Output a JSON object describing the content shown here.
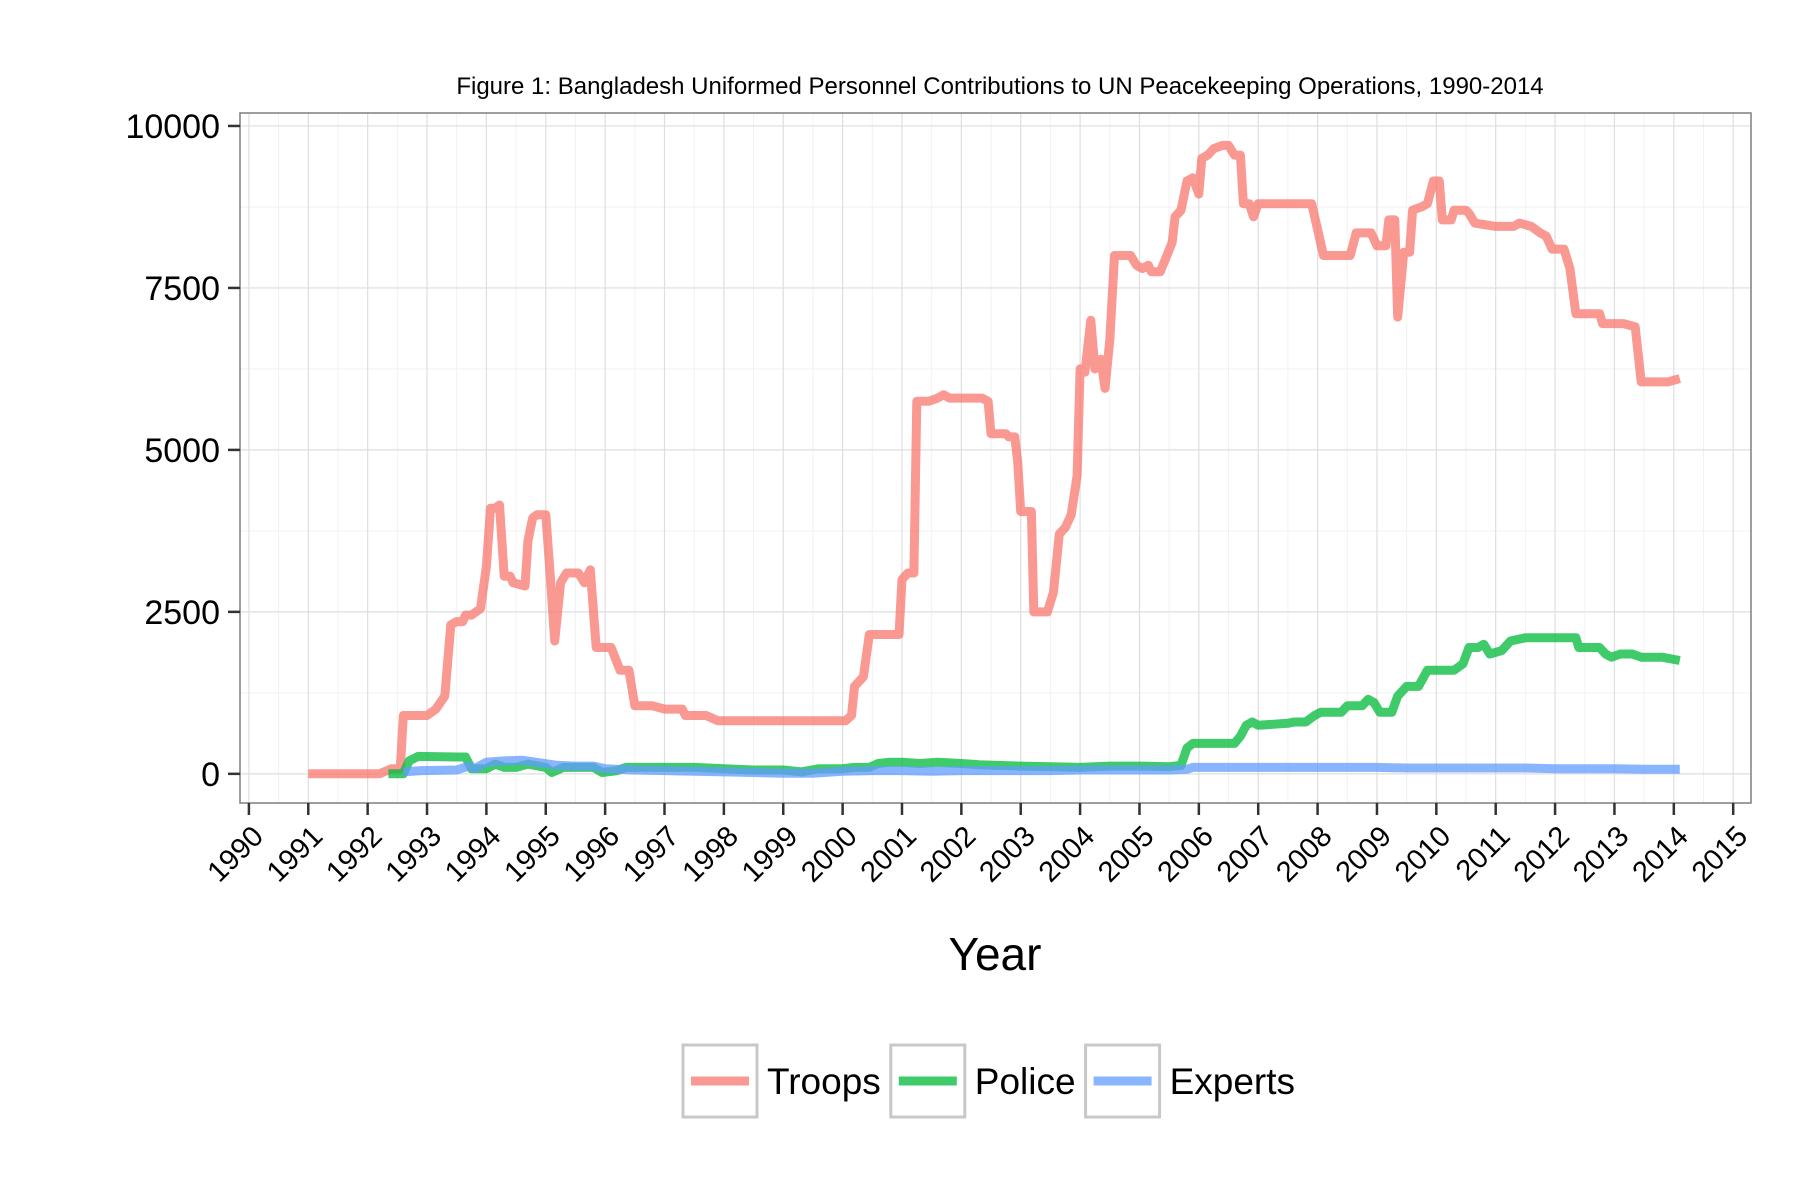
{
  "chart_data": {
    "type": "line",
    "title": "Figure 1: Bangladesh Uniformed Personnel Contributions to UN Peacekeeping Operations, 1990-2014",
    "xlabel": "Year",
    "ylabel": "",
    "xlim": [
      1989.85,
      2015.3
    ],
    "ylim": [
      -450,
      10200
    ],
    "x_ticks": [
      1990,
      1991,
      1992,
      1993,
      1994,
      1995,
      1996,
      1997,
      1998,
      1999,
      2000,
      2001,
      2002,
      2003,
      2004,
      2005,
      2006,
      2007,
      2008,
      2009,
      2010,
      2011,
      2012,
      2013,
      2014,
      2015
    ],
    "y_ticks": [
      0,
      2500,
      5000,
      7500,
      10000
    ],
    "grid": true,
    "legend_position": "bottom",
    "series": [
      {
        "name": "Troops",
        "color": "#F8766D",
        "points": [
          [
            1991.0,
            0
          ],
          [
            1992.2,
            0
          ],
          [
            1992.4,
            80
          ],
          [
            1992.55,
            80
          ],
          [
            1992.6,
            900
          ],
          [
            1993.0,
            900
          ],
          [
            1993.15,
            1000
          ],
          [
            1993.3,
            1200
          ],
          [
            1993.4,
            2300
          ],
          [
            1993.5,
            2350
          ],
          [
            1993.6,
            2350
          ],
          [
            1993.65,
            2450
          ],
          [
            1993.75,
            2450
          ],
          [
            1993.9,
            2550
          ],
          [
            1994.0,
            3200
          ],
          [
            1994.07,
            4100
          ],
          [
            1994.15,
            4100
          ],
          [
            1994.22,
            4150
          ],
          [
            1994.3,
            3050
          ],
          [
            1994.4,
            3050
          ],
          [
            1994.45,
            2950
          ],
          [
            1994.65,
            2900
          ],
          [
            1994.7,
            3600
          ],
          [
            1994.78,
            3950
          ],
          [
            1994.85,
            4000
          ],
          [
            1995.0,
            4000
          ],
          [
            1995.08,
            3000
          ],
          [
            1995.15,
            2050
          ],
          [
            1995.25,
            2950
          ],
          [
            1995.35,
            3100
          ],
          [
            1995.55,
            3100
          ],
          [
            1995.65,
            2950
          ],
          [
            1995.75,
            3150
          ],
          [
            1995.85,
            1950
          ],
          [
            1996.1,
            1950
          ],
          [
            1996.25,
            1600
          ],
          [
            1996.4,
            1600
          ],
          [
            1996.5,
            1050
          ],
          [
            1996.8,
            1050
          ],
          [
            1997.0,
            1000
          ],
          [
            1997.3,
            1000
          ],
          [
            1997.35,
            900
          ],
          [
            1997.7,
            900
          ],
          [
            1997.9,
            820
          ],
          [
            1998.5,
            820
          ],
          [
            1999.0,
            820
          ],
          [
            1999.5,
            820
          ],
          [
            1999.8,
            820
          ],
          [
            2000.05,
            820
          ],
          [
            2000.15,
            900
          ],
          [
            2000.2,
            1350
          ],
          [
            2000.35,
            1500
          ],
          [
            2000.45,
            2150
          ],
          [
            2000.7,
            2150
          ],
          [
            2000.95,
            2150
          ],
          [
            2001.0,
            3000
          ],
          [
            2001.1,
            3100
          ],
          [
            2001.2,
            3100
          ],
          [
            2001.25,
            5750
          ],
          [
            2001.45,
            5750
          ],
          [
            2001.6,
            5800
          ],
          [
            2001.7,
            5850
          ],
          [
            2001.8,
            5800
          ],
          [
            2002.0,
            5800
          ],
          [
            2002.35,
            5800
          ],
          [
            2002.45,
            5750
          ],
          [
            2002.5,
            5250
          ],
          [
            2002.75,
            5250
          ],
          [
            2002.8,
            5200
          ],
          [
            2002.9,
            5200
          ],
          [
            2002.95,
            4800
          ],
          [
            2003.0,
            4050
          ],
          [
            2003.18,
            4050
          ],
          [
            2003.22,
            2500
          ],
          [
            2003.45,
            2500
          ],
          [
            2003.55,
            2800
          ],
          [
            2003.65,
            3700
          ],
          [
            2003.75,
            3800
          ],
          [
            2003.85,
            4000
          ],
          [
            2003.95,
            4600
          ],
          [
            2004.0,
            6250
          ],
          [
            2004.08,
            6200
          ],
          [
            2004.18,
            7000
          ],
          [
            2004.25,
            6250
          ],
          [
            2004.35,
            6400
          ],
          [
            2004.42,
            5950
          ],
          [
            2004.5,
            6700
          ],
          [
            2004.58,
            8000
          ],
          [
            2004.85,
            8000
          ],
          [
            2004.95,
            7850
          ],
          [
            2005.05,
            7800
          ],
          [
            2005.15,
            7850
          ],
          [
            2005.2,
            7750
          ],
          [
            2005.35,
            7750
          ],
          [
            2005.55,
            8200
          ],
          [
            2005.6,
            8600
          ],
          [
            2005.7,
            8700
          ],
          [
            2005.8,
            9150
          ],
          [
            2005.9,
            9200
          ],
          [
            2006.0,
            8950
          ],
          [
            2006.05,
            9500
          ],
          [
            2006.15,
            9550
          ],
          [
            2006.25,
            9650
          ],
          [
            2006.4,
            9700
          ],
          [
            2006.5,
            9700
          ],
          [
            2006.6,
            9550
          ],
          [
            2006.7,
            9550
          ],
          [
            2006.75,
            8800
          ],
          [
            2006.85,
            8800
          ],
          [
            2006.92,
            8600
          ],
          [
            2007.0,
            8800
          ],
          [
            2007.2,
            8800
          ],
          [
            2007.3,
            8800
          ],
          [
            2007.6,
            8800
          ],
          [
            2007.9,
            8800
          ],
          [
            2008.0,
            8400
          ],
          [
            2008.1,
            8000
          ],
          [
            2008.3,
            8000
          ],
          [
            2008.55,
            8000
          ],
          [
            2008.65,
            8350
          ],
          [
            2008.9,
            8350
          ],
          [
            2009.0,
            8150
          ],
          [
            2009.15,
            8150
          ],
          [
            2009.2,
            8550
          ],
          [
            2009.3,
            8550
          ],
          [
            2009.35,
            7050
          ],
          [
            2009.45,
            8050
          ],
          [
            2009.55,
            8050
          ],
          [
            2009.6,
            8700
          ],
          [
            2009.75,
            8750
          ],
          [
            2009.85,
            8800
          ],
          [
            2009.95,
            9150
          ],
          [
            2010.05,
            9150
          ],
          [
            2010.1,
            8550
          ],
          [
            2010.25,
            8550
          ],
          [
            2010.3,
            8700
          ],
          [
            2010.5,
            8700
          ],
          [
            2010.55,
            8650
          ],
          [
            2010.65,
            8500
          ],
          [
            2011.0,
            8450
          ],
          [
            2011.3,
            8450
          ],
          [
            2011.4,
            8500
          ],
          [
            2011.6,
            8450
          ],
          [
            2011.75,
            8350
          ],
          [
            2011.85,
            8300
          ],
          [
            2011.95,
            8100
          ],
          [
            2012.15,
            8100
          ],
          [
            2012.25,
            7800
          ],
          [
            2012.35,
            7100
          ],
          [
            2012.75,
            7100
          ],
          [
            2012.8,
            6950
          ],
          [
            2013.15,
            6950
          ],
          [
            2013.35,
            6900
          ],
          [
            2013.45,
            6050
          ],
          [
            2013.9,
            6050
          ],
          [
            2014.1,
            6100
          ]
        ]
      },
      {
        "name": "Police",
        "color": "#00BA38",
        "points": [
          [
            1992.35,
            0
          ],
          [
            1992.6,
            0
          ],
          [
            1992.7,
            200
          ],
          [
            1992.85,
            270
          ],
          [
            1993.5,
            260
          ],
          [
            1993.65,
            260
          ],
          [
            1993.75,
            80
          ],
          [
            1994.0,
            80
          ],
          [
            1994.15,
            150
          ],
          [
            1994.3,
            100
          ],
          [
            1994.5,
            100
          ],
          [
            1994.7,
            150
          ],
          [
            1995.0,
            100
          ],
          [
            1995.1,
            20
          ],
          [
            1995.3,
            100
          ],
          [
            1995.5,
            100
          ],
          [
            1995.8,
            100
          ],
          [
            1995.95,
            20
          ],
          [
            1996.2,
            50
          ],
          [
            1996.35,
            100
          ],
          [
            1996.5,
            100
          ],
          [
            1997.0,
            100
          ],
          [
            1997.5,
            100
          ],
          [
            1998.0,
            80
          ],
          [
            1998.5,
            60
          ],
          [
            1999.0,
            60
          ],
          [
            1999.3,
            30
          ],
          [
            1999.6,
            80
          ],
          [
            2000.0,
            80
          ],
          [
            2000.2,
            100
          ],
          [
            2000.45,
            100
          ],
          [
            2000.6,
            160
          ],
          [
            2000.8,
            180
          ],
          [
            2001.0,
            180
          ],
          [
            2001.3,
            160
          ],
          [
            2001.6,
            180
          ],
          [
            2002.0,
            160
          ],
          [
            2002.3,
            140
          ],
          [
            2002.6,
            130
          ],
          [
            2003.0,
            120
          ],
          [
            2003.5,
            110
          ],
          [
            2004.0,
            100
          ],
          [
            2004.5,
            120
          ],
          [
            2005.0,
            120
          ],
          [
            2005.5,
            110
          ],
          [
            2005.7,
            130
          ],
          [
            2005.8,
            400
          ],
          [
            2005.9,
            470
          ],
          [
            2006.2,
            470
          ],
          [
            2006.6,
            470
          ],
          [
            2006.7,
            580
          ],
          [
            2006.8,
            750
          ],
          [
            2006.9,
            800
          ],
          [
            2007.0,
            750
          ],
          [
            2007.5,
            780
          ],
          [
            2007.6,
            800
          ],
          [
            2007.8,
            800
          ],
          [
            2007.95,
            900
          ],
          [
            2008.05,
            950
          ],
          [
            2008.4,
            950
          ],
          [
            2008.5,
            1050
          ],
          [
            2008.75,
            1050
          ],
          [
            2008.85,
            1150
          ],
          [
            2008.95,
            1100
          ],
          [
            2009.05,
            950
          ],
          [
            2009.25,
            950
          ],
          [
            2009.35,
            1200
          ],
          [
            2009.5,
            1350
          ],
          [
            2009.7,
            1350
          ],
          [
            2009.85,
            1600
          ],
          [
            2010.0,
            1600
          ],
          [
            2010.3,
            1600
          ],
          [
            2010.45,
            1700
          ],
          [
            2010.55,
            1950
          ],
          [
            2010.7,
            1950
          ],
          [
            2010.8,
            2000
          ],
          [
            2010.9,
            1850
          ],
          [
            2011.1,
            1900
          ],
          [
            2011.25,
            2050
          ],
          [
            2011.5,
            2100
          ],
          [
            2012.0,
            2100
          ],
          [
            2012.25,
            2100
          ],
          [
            2012.35,
            2100
          ],
          [
            2012.4,
            1950
          ],
          [
            2012.75,
            1950
          ],
          [
            2012.85,
            1850
          ],
          [
            2012.95,
            1800
          ],
          [
            2013.1,
            1850
          ],
          [
            2013.3,
            1850
          ],
          [
            2013.45,
            1800
          ],
          [
            2013.8,
            1800
          ],
          [
            2014.1,
            1750
          ]
        ]
      },
      {
        "name": "Experts",
        "color": "#619CFF",
        "points": [
          [
            1992.6,
            30
          ],
          [
            1992.9,
            50
          ],
          [
            1993.5,
            60
          ],
          [
            1993.7,
            120
          ],
          [
            1993.8,
            80
          ],
          [
            1994.0,
            180
          ],
          [
            1994.3,
            200
          ],
          [
            1994.6,
            210
          ],
          [
            1994.9,
            170
          ],
          [
            1995.2,
            130
          ],
          [
            1995.5,
            120
          ],
          [
            1995.8,
            120
          ],
          [
            1996.0,
            80
          ],
          [
            1996.5,
            60
          ],
          [
            1997.0,
            50
          ],
          [
            1997.5,
            40
          ],
          [
            1998.0,
            30
          ],
          [
            1998.5,
            20
          ],
          [
            1999.0,
            10
          ],
          [
            1999.5,
            10
          ],
          [
            2000.0,
            40
          ],
          [
            2000.5,
            50
          ],
          [
            2001.0,
            50
          ],
          [
            2001.5,
            40
          ],
          [
            2002.0,
            50
          ],
          [
            2002.5,
            50
          ],
          [
            2003.0,
            50
          ],
          [
            2003.5,
            50
          ],
          [
            2004.0,
            60
          ],
          [
            2004.5,
            60
          ],
          [
            2005.0,
            60
          ],
          [
            2005.5,
            60
          ],
          [
            2005.8,
            70
          ],
          [
            2005.9,
            100
          ],
          [
            2006.5,
            100
          ],
          [
            2007.0,
            100
          ],
          [
            2007.5,
            100
          ],
          [
            2008.0,
            100
          ],
          [
            2008.5,
            100
          ],
          [
            2009.0,
            100
          ],
          [
            2009.5,
            90
          ],
          [
            2010.0,
            90
          ],
          [
            2010.5,
            90
          ],
          [
            2011.0,
            90
          ],
          [
            2011.5,
            90
          ],
          [
            2012.0,
            80
          ],
          [
            2012.5,
            80
          ],
          [
            2013.0,
            80
          ],
          [
            2013.5,
            70
          ],
          [
            2014.1,
            70
          ]
        ]
      }
    ]
  }
}
